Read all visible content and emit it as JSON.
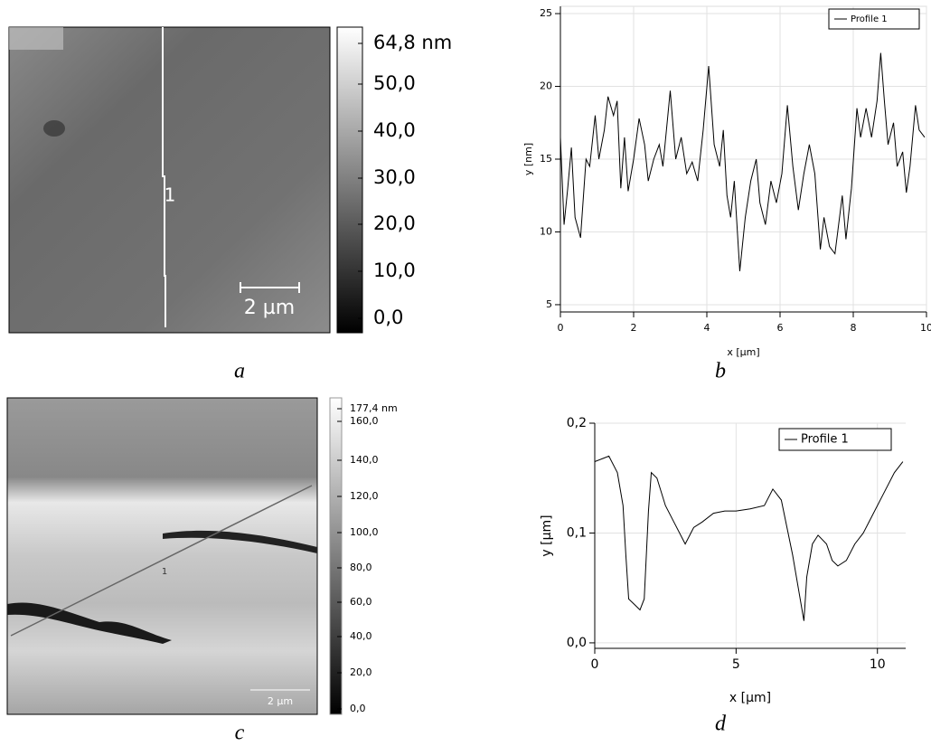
{
  "chart_data": [
    {
      "type": "line",
      "panel": "b",
      "x_label": "x [µm]",
      "y_label": "y [nm]",
      "xlim": [
        0,
        10
      ],
      "ylim": [
        4.5,
        25.5
      ],
      "xticks": [
        0,
        2,
        4,
        6,
        8,
        10
      ],
      "yticks": [
        5,
        10,
        15,
        20,
        25
      ],
      "grid": true,
      "legend": "upper right",
      "x": [
        0,
        0.1,
        0.2,
        0.3,
        0.4,
        0.55,
        0.7,
        0.8,
        0.95,
        1.05,
        1.2,
        1.3,
        1.45,
        1.55,
        1.65,
        1.75,
        1.85,
        2.0,
        2.15,
        2.3,
        2.4,
        2.55,
        2.7,
        2.8,
        3.0,
        3.15,
        3.3,
        3.45,
        3.6,
        3.75,
        3.9,
        4.05,
        4.2,
        4.35,
        4.45,
        4.55,
        4.65,
        4.75,
        4.9,
        5.05,
        5.2,
        5.35,
        5.45,
        5.6,
        5.75,
        5.9,
        6.05,
        6.2,
        6.35,
        6.5,
        6.65,
        6.8,
        6.95,
        7.1,
        7.2,
        7.35,
        7.5,
        7.7,
        7.8,
        7.95,
        8.1,
        8.2,
        8.35,
        8.5,
        8.65,
        8.75,
        8.85,
        8.95,
        9.1,
        9.2,
        9.35,
        9.45,
        9.55,
        9.7,
        9.8,
        9.95
      ],
      "series": [
        {
          "name": "Profile 1",
          "color": "#000000",
          "values": [
            16.5,
            10.5,
            13,
            15.8,
            11,
            9.6,
            15,
            14.5,
            18,
            15,
            17,
            19.3,
            18,
            19,
            13,
            16.5,
            12.8,
            15,
            17.8,
            16,
            13.5,
            15,
            16,
            14.5,
            19.7,
            15,
            16.5,
            14,
            14.8,
            13.5,
            17,
            21.4,
            16,
            14.5,
            17,
            12.5,
            11,
            13.5,
            7.3,
            11,
            13.5,
            15,
            12,
            10.5,
            13.5,
            12,
            14,
            18.7,
            14.5,
            11.5,
            14,
            16,
            14,
            8.8,
            11,
            9,
            8.5,
            12.5,
            9.5,
            13,
            18.5,
            16.5,
            18.5,
            16.5,
            19,
            22.3,
            19,
            16,
            17.5,
            14.5,
            15.5,
            12.7,
            14.5,
            18.7,
            17,
            16.5
          ]
        }
      ]
    },
    {
      "type": "line",
      "panel": "d",
      "x_label": "x [µm]",
      "y_label": "y [µm]",
      "xlim": [
        0,
        11
      ],
      "ylim": [
        -0.005,
        0.2
      ],
      "xticks": [
        0,
        5,
        10
      ],
      "yticks": [
        {
          "value": 0,
          "label": "0,0"
        },
        {
          "value": 0.1,
          "label": "0,1"
        },
        {
          "value": 0.2,
          "label": "0,2"
        }
      ],
      "grid": true,
      "legend": "upper right",
      "x": [
        0,
        0.3,
        0.5,
        0.8,
        1.0,
        1.1,
        1.2,
        1.4,
        1.6,
        1.75,
        1.9,
        2.0,
        2.2,
        2.5,
        2.8,
        3.1,
        3.2,
        3.5,
        3.8,
        4.2,
        4.6,
        5.0,
        5.5,
        6.0,
        6.3,
        6.6,
        6.8,
        7.0,
        7.2,
        7.4,
        7.5,
        7.7,
        7.9,
        8.2,
        8.4,
        8.6,
        8.9,
        9.2,
        9.5,
        9.8,
        10.2,
        10.6,
        10.9
      ],
      "series": [
        {
          "name": "Profile 1",
          "color": "#000000",
          "values": [
            0.165,
            0.168,
            0.17,
            0.155,
            0.125,
            0.08,
            0.04,
            0.035,
            0.03,
            0.04,
            0.12,
            0.155,
            0.15,
            0.125,
            0.11,
            0.095,
            0.09,
            0.105,
            0.11,
            0.118,
            0.12,
            0.12,
            0.122,
            0.125,
            0.14,
            0.13,
            0.105,
            0.08,
            0.05,
            0.02,
            0.06,
            0.09,
            0.098,
            0.09,
            0.075,
            0.07,
            0.075,
            0.09,
            0.1,
            0.115,
            0.135,
            0.155,
            0.165
          ]
        }
      ]
    }
  ],
  "images": [
    {
      "panel": "a",
      "colorbar_labels": [
        "64,8 nm",
        "50,0",
        "40,0",
        "30,0",
        "20,0",
        "10,0",
        "0,0"
      ],
      "scale_bar": "2 µm",
      "profile_label": "1"
    },
    {
      "panel": "c",
      "colorbar_labels": [
        "177,4 nm",
        "160,0",
        "140,0",
        "120,0",
        "100,0",
        "80,0",
        "60,0",
        "40,0",
        "20,0",
        "0,0"
      ],
      "scale_bar": "2 µm",
      "profile_label": "1"
    }
  ]
}
